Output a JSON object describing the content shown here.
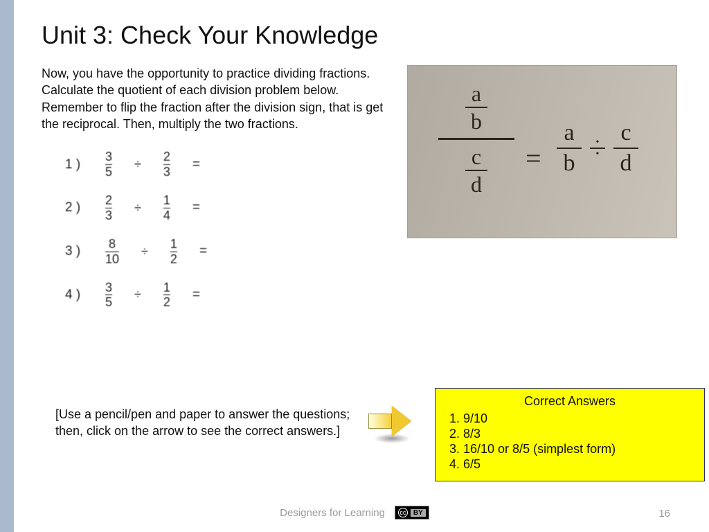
{
  "title": "Unit 3: Check Your Knowledge",
  "intro": "Now, you have the opportunity to practice dividing fractions. Calculate the quotient  of each division problem below. Remember to flip the fraction after the division sign, that is get the reciprocal. Then, multiply the two fractions.",
  "problems": [
    {
      "n": "1 )",
      "a_num": "3",
      "a_den": "5",
      "b_num": "2",
      "b_den": "3"
    },
    {
      "n": "2 )",
      "a_num": "2",
      "a_den": "3",
      "b_num": "1",
      "b_den": "4"
    },
    {
      "n": "3 )",
      "a_num": "8",
      "a_den": "10",
      "b_num": "1",
      "b_den": "2"
    },
    {
      "n": "4 )",
      "a_num": "3",
      "a_den": "5",
      "b_num": "1",
      "b_den": "2"
    }
  ],
  "division_symbol": "÷",
  "equals_symbol": "=",
  "formula": {
    "lhs_top_num": "a",
    "lhs_top_den": "b",
    "lhs_bot_num": "c",
    "lhs_bot_den": "d",
    "rhs1_num": "a",
    "rhs1_den": "b",
    "rhs2_num": "c",
    "rhs2_den": "d"
  },
  "note": "[Use a pencil/pen and paper to answer the questions; then, click on the arrow to see the correct answers.]",
  "answers": {
    "header": "Correct Answers",
    "items": [
      "9/10",
      "8/3",
      "16/10 or 8/5 (simplest form)",
      "6/5"
    ]
  },
  "footer_text": "Designers for Learning",
  "cc_label": "BY",
  "page_number": "16",
  "colors": {
    "left_bar": "#a9bacd",
    "answers_bg": "#ffff00",
    "answers_border": "#2a2a8a",
    "formula_bg_from": "#b1aaa0",
    "formula_bg_to": "#cac3ba",
    "arrow_fill": "#f0c830",
    "footer_text": "#9a9a9a"
  }
}
